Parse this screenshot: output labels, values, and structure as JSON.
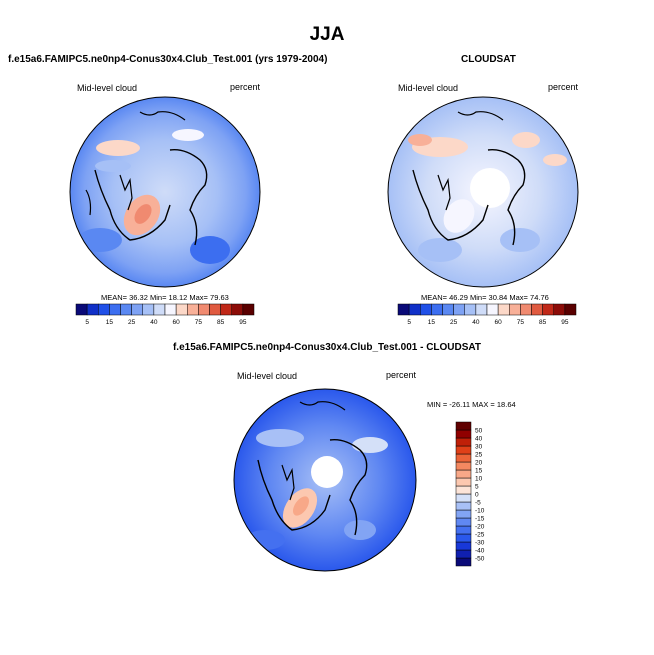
{
  "figure": {
    "title": "JJA",
    "diff_title": "f.e15a6.FAMIPC5.ne0np4-Conus30x4.Club_Test.001 - CLOUDSAT"
  },
  "panels": {
    "model": {
      "title": "f.e15a6.FAMIPC5.ne0np4-Conus30x4.Club_Test.001 (yrs 1979-2004)",
      "left_label": "Mid-level cloud",
      "right_label": "percent",
      "stats": "MEAN=  36.32  Min=  18.12  Max=  79.63"
    },
    "obs": {
      "title": "CLOUDSAT",
      "left_label": "Mid-level cloud",
      "right_label": "percent",
      "stats": "MEAN=  46.29  Min=  30.84  Max=  74.76"
    },
    "diff": {
      "left_label": "Mid-level cloud",
      "right_label": "percent",
      "stats": "MIN = -26.11  MAX =  18.64"
    }
  },
  "chart_data": [
    {
      "type": "heatmap",
      "projection": "north polar stereographic",
      "title": "f.e15a6.FAMIPC5.ne0np4-Conus30x4.Club_Test.001 (yrs 1979-2004)",
      "variable": "Mid-level cloud",
      "units": "percent",
      "mean": 36.32,
      "min": 18.12,
      "max": 79.63,
      "colorbar": {
        "orientation": "horizontal",
        "levels": [
          5,
          10,
          15,
          20,
          25,
          30,
          40,
          50,
          60,
          70,
          75,
          80,
          85,
          90,
          95
        ],
        "tick_labels": [
          "5",
          "15",
          "25",
          "40",
          "60",
          "75",
          "85",
          "95"
        ],
        "colors": [
          "#0a0a78",
          "#1030c8",
          "#2050e8",
          "#3c6ef0",
          "#5a88f2",
          "#7ea2f4",
          "#a6c0f6",
          "#cfdcf8",
          "#f6f6ff",
          "#fcd8c8",
          "#f8b098",
          "#f08a70",
          "#e05a40",
          "#c02818",
          "#8c0c08",
          "#5a0000"
        ]
      }
    },
    {
      "type": "heatmap",
      "projection": "north polar stereographic",
      "title": "CLOUDSAT",
      "variable": "Mid-level cloud",
      "units": "percent",
      "mean": 46.29,
      "min": 30.84,
      "max": 74.76,
      "colorbar": {
        "orientation": "horizontal",
        "levels": [
          5,
          10,
          15,
          20,
          25,
          30,
          40,
          50,
          60,
          70,
          75,
          80,
          85,
          90,
          95
        ],
        "tick_labels": [
          "5",
          "15",
          "25",
          "40",
          "60",
          "75",
          "85",
          "95"
        ],
        "colors": [
          "#0a0a78",
          "#1030c8",
          "#2050e8",
          "#3c6ef0",
          "#5a88f2",
          "#7ea2f4",
          "#a6c0f6",
          "#cfdcf8",
          "#f6f6ff",
          "#fcd8c8",
          "#f8b098",
          "#f08a70",
          "#e05a40",
          "#c02818",
          "#8c0c08",
          "#5a0000"
        ]
      }
    },
    {
      "type": "heatmap",
      "projection": "north polar stereographic",
      "title": "f.e15a6.FAMIPC5.ne0np4-Conus30x4.Club_Test.001 - CLOUDSAT",
      "variable": "Mid-level cloud",
      "units": "percent",
      "min": -26.11,
      "max": 18.64,
      "colorbar": {
        "orientation": "vertical",
        "levels": [
          -50,
          -40,
          -30,
          -25,
          -20,
          -15,
          -10,
          -5,
          0,
          5,
          10,
          15,
          20,
          25,
          30,
          40,
          50
        ],
        "tick_labels": [
          "-50",
          "-40",
          "-30",
          "-25",
          "-20",
          "-15",
          "-10",
          "-5",
          "0",
          "5",
          "10",
          "15",
          "20",
          "25",
          "30",
          "40",
          "50"
        ],
        "colors": [
          "#0a0a78",
          "#1020b0",
          "#1838d8",
          "#2a58ec",
          "#4470f0",
          "#6088f2",
          "#82a4f4",
          "#a8c0f6",
          "#d4e0f8",
          "#fce4d8",
          "#fcc8b0",
          "#f8a888",
          "#f48860",
          "#ec6438",
          "#e04018",
          "#c02008",
          "#900000",
          "#600000"
        ]
      }
    }
  ]
}
